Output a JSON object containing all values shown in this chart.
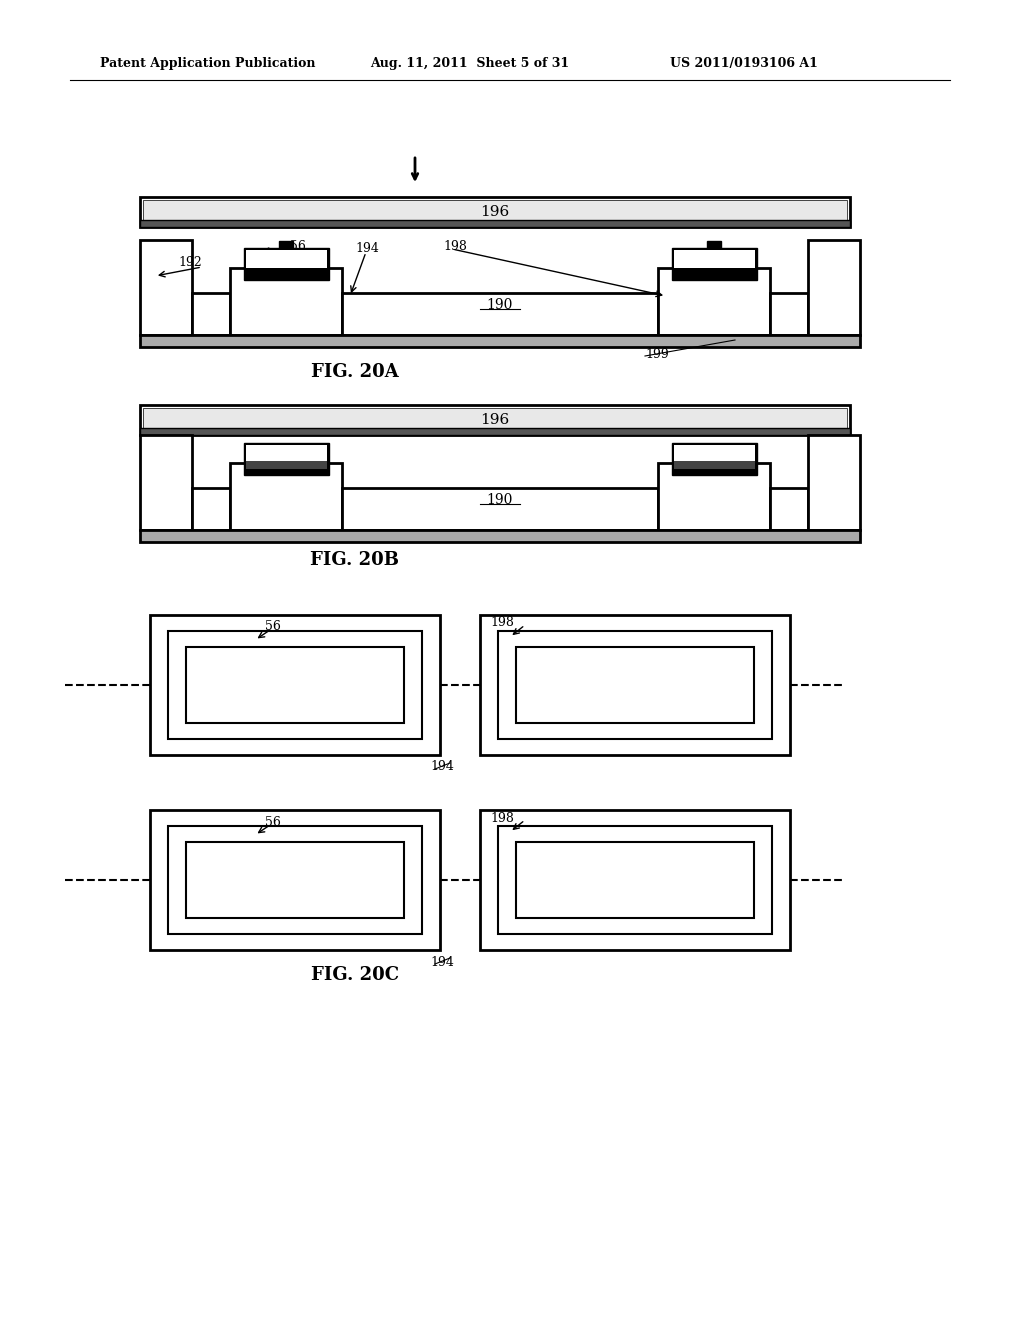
{
  "header_left": "Patent Application Publication",
  "header_mid": "Aug. 11, 2011  Sheet 5 of 31",
  "header_right": "US 2011/0193106 A1",
  "fig20a_label": "FIG. 20A",
  "fig20b_label": "FIG. 20B",
  "fig20c_label": "FIG. 20C",
  "label_190": "190",
  "label_192": "192",
  "label_194": "194",
  "label_196": "196",
  "label_198": "198",
  "label_199": "199",
  "label_56": "56",
  "bg_color": "#ffffff",
  "line_color": "#000000",
  "fill_gray": "#aaaaaa",
  "fill_dark": "#333333",
  "fill_light": "#e8e8e8"
}
